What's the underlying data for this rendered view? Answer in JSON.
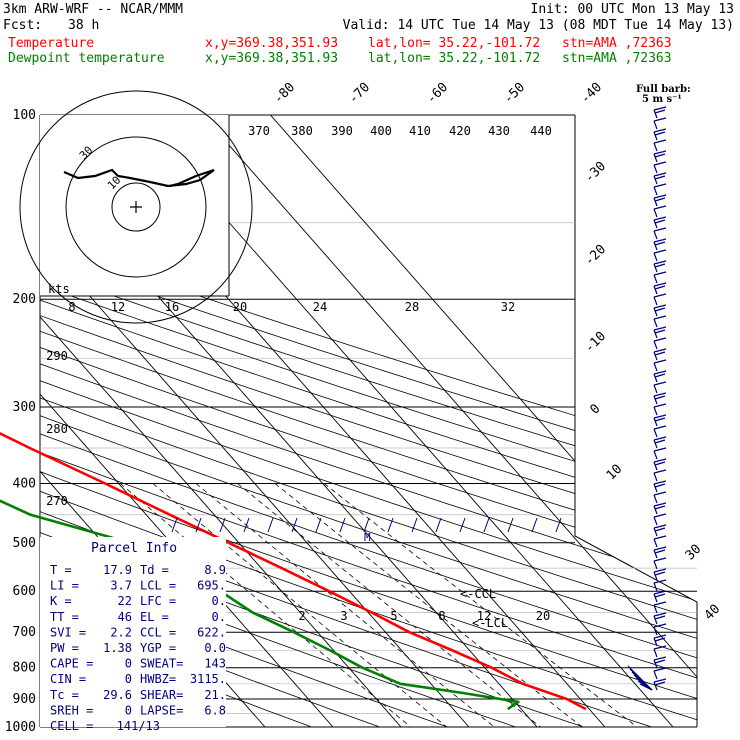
{
  "header": {
    "model": "3km ARW-WRF -- NCAR/MMM",
    "init": "Init: 00 UTC Mon 13 May 13",
    "fcst_label": "Fcst:",
    "fcst_value": "38 h",
    "valid": "Valid: 14 UTC Tue 14 May 13 (08 MDT Tue 14 May 13)"
  },
  "legend": [
    {
      "name": "Temperature",
      "xy": "x,y=369.38,351.93",
      "latlon": "lat,lon= 35.22,-101.72",
      "stn": "stn=AMA ,72363",
      "color": "#ff0000"
    },
    {
      "name": "Dewpoint temperature",
      "xy": "x,y=369.38,351.93",
      "latlon": "lat,lon= 35.22,-101.72",
      "stn": "stn=AMA ,72363",
      "color": "#008000"
    }
  ],
  "barb_label": {
    "line1": "Full barb:",
    "line2": "5 m s⁻¹"
  },
  "parcel_info": {
    "title": "Parcel Info",
    "rows": [
      [
        "T  =",
        "17.9",
        "Td =",
        "8.9"
      ],
      [
        "LI =",
        "3.7",
        "LCL =",
        "695."
      ],
      [
        "K  =",
        "22",
        "LFC =",
        "0."
      ],
      [
        "TT =",
        "46",
        "EL =",
        "0."
      ],
      [
        "SVI =",
        "2.2",
        "CCL =",
        "622."
      ],
      [
        "PW =",
        "1.38",
        "YGP =",
        "0.0"
      ],
      [
        "CAPE =",
        "0",
        "SWEAT=",
        "143"
      ],
      [
        "CIN =",
        "0",
        "HWBZ=",
        "3115."
      ],
      [
        "Tc =",
        "29.6",
        "SHEAR=",
        "21."
      ],
      [
        "SREH =",
        "0",
        "LAPSE=",
        "6.8"
      ],
      [
        "CELL =",
        "141/13",
        "",
        ""
      ]
    ]
  },
  "hodograph": {
    "kts_label": "kts",
    "ring_labels": [
      "10",
      "30"
    ],
    "speed_ticks": [
      "8",
      "12",
      "16",
      "20",
      "24",
      "28",
      "32"
    ]
  },
  "annotations": {
    "ccl": "<-CCL",
    "lcl": "<-LCL",
    "m": "M"
  },
  "chart_data": {
    "type": "line",
    "title": "",
    "ylabel": "",
    "xlabel": "",
    "yscale": "log-pressure",
    "pressure_levels": [
      100,
      200,
      300,
      400,
      500,
      600,
      700,
      800,
      900,
      1000
    ],
    "isotherm_labels": [
      "-80",
      "-70",
      "-60",
      "-50",
      "-40",
      "-30",
      "-20",
      "-10",
      "0",
      "10",
      "30",
      "40"
    ],
    "theta_labels": [
      "370",
      "380",
      "390",
      "400",
      "410",
      "420",
      "430",
      "440",
      "290",
      "280",
      "270"
    ],
    "mixing_ratio_labels": [
      "2",
      "3",
      "5",
      "8",
      "12",
      "20"
    ],
    "series": [
      {
        "name": "Temperature",
        "color": "#ff0000",
        "points": [
          [
            935,
            19.5
          ],
          [
            900,
            18.0
          ],
          [
            850,
            13.5
          ],
          [
            800,
            11.0
          ],
          [
            750,
            7.5
          ],
          [
            700,
            3.5
          ],
          [
            650,
            0.5
          ],
          [
            600,
            -3.0
          ],
          [
            550,
            -7.0
          ],
          [
            500,
            -11.5
          ],
          [
            450,
            -16.5
          ],
          [
            400,
            -22.0
          ],
          [
            350,
            -28.5
          ],
          [
            300,
            -35.5
          ],
          [
            250,
            -44.0
          ],
          [
            210,
            -51.5
          ],
          [
            180,
            -57.5
          ],
          [
            160,
            -59.0
          ],
          [
            140,
            -61.5
          ],
          [
            120,
            -64.5
          ],
          [
            110,
            -66.0
          ],
          [
            100,
            -68.0
          ]
        ]
      },
      {
        "name": "Dewpoint temperature",
        "color": "#008000",
        "points": [
          [
            935,
            8.0
          ],
          [
            910,
            10.5
          ],
          [
            880,
            3.5
          ],
          [
            850,
            -4.5
          ],
          [
            800,
            -8.0
          ],
          [
            750,
            -10.5
          ],
          [
            700,
            -13.5
          ],
          [
            650,
            -17.0
          ],
          [
            600,
            -19.0
          ],
          [
            550,
            -21.5
          ],
          [
            500,
            -26.0
          ],
          [
            450,
            -37.0
          ],
          [
            400,
            -43.0
          ],
          [
            350,
            -45.0
          ],
          [
            300,
            -54.0
          ],
          [
            270,
            -63.0
          ],
          [
            240,
            -65.0
          ],
          [
            200,
            -67.5
          ],
          [
            170,
            -71.0
          ],
          [
            150,
            -73.5
          ],
          [
            130,
            -76.0
          ],
          [
            115,
            -77.5
          ],
          [
            100,
            -80.0
          ]
        ]
      }
    ]
  }
}
